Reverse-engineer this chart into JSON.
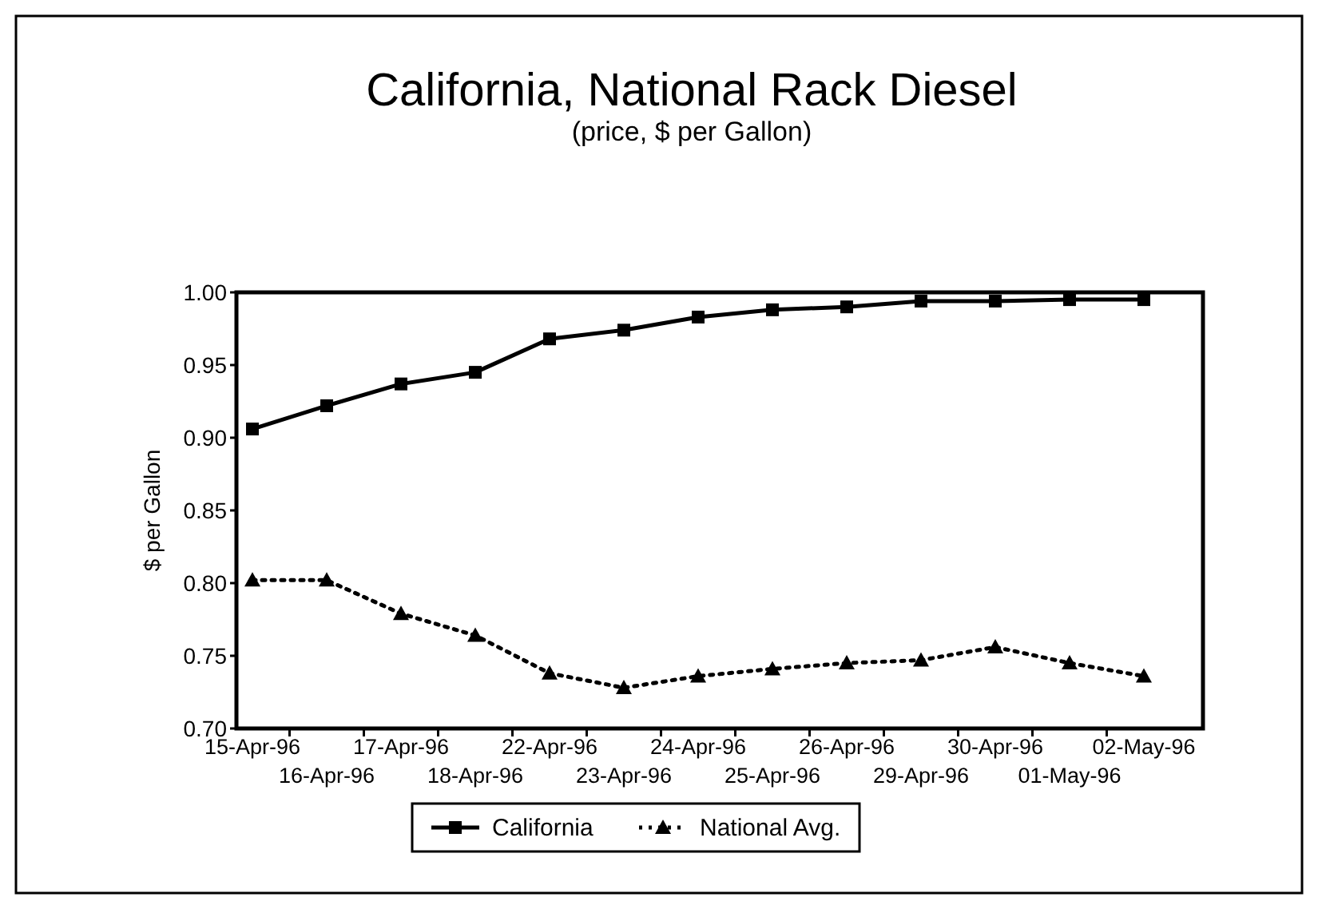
{
  "chart_data": {
    "type": "line",
    "title": "California, National Rack Diesel",
    "subtitle": "(price, $ per Gallon)",
    "ylabel": "$ per Gallon",
    "categories": [
      "15-Apr-96",
      "16-Apr-96",
      "17-Apr-96",
      "18-Apr-96",
      "22-Apr-96",
      "23-Apr-96",
      "24-Apr-96",
      "25-Apr-96",
      "26-Apr-96",
      "29-Apr-96",
      "30-Apr-96",
      "01-May-96",
      "02-May-96"
    ],
    "series": [
      {
        "name": "California",
        "color": "#000000",
        "marker": "square",
        "line_style": "solid",
        "values": [
          0.906,
          0.922,
          0.937,
          0.945,
          0.968,
          0.974,
          0.983,
          0.988,
          0.99,
          0.994,
          0.994,
          0.995,
          0.995
        ]
      },
      {
        "name": "National Avg.",
        "color": "#000000",
        "marker": "triangle",
        "line_style": "dotted",
        "values": [
          0.802,
          0.802,
          0.779,
          0.764,
          0.738,
          0.728,
          0.736,
          0.741,
          0.745,
          0.747,
          0.756,
          0.745,
          0.736
        ]
      }
    ],
    "ylim": [
      0.7,
      1.0
    ],
    "yticks": [
      {
        "value": 0.7,
        "label": "0.70"
      },
      {
        "value": 0.75,
        "label": "0.75"
      },
      {
        "value": 0.8,
        "label": "0.80"
      },
      {
        "value": 0.85,
        "label": "0.85"
      },
      {
        "value": 0.9,
        "label": "0.90"
      },
      {
        "value": 0.95,
        "label": "0.95"
      },
      {
        "value": 1.0,
        "label": "1.00"
      }
    ],
    "grid": false,
    "legend": "bottom"
  }
}
